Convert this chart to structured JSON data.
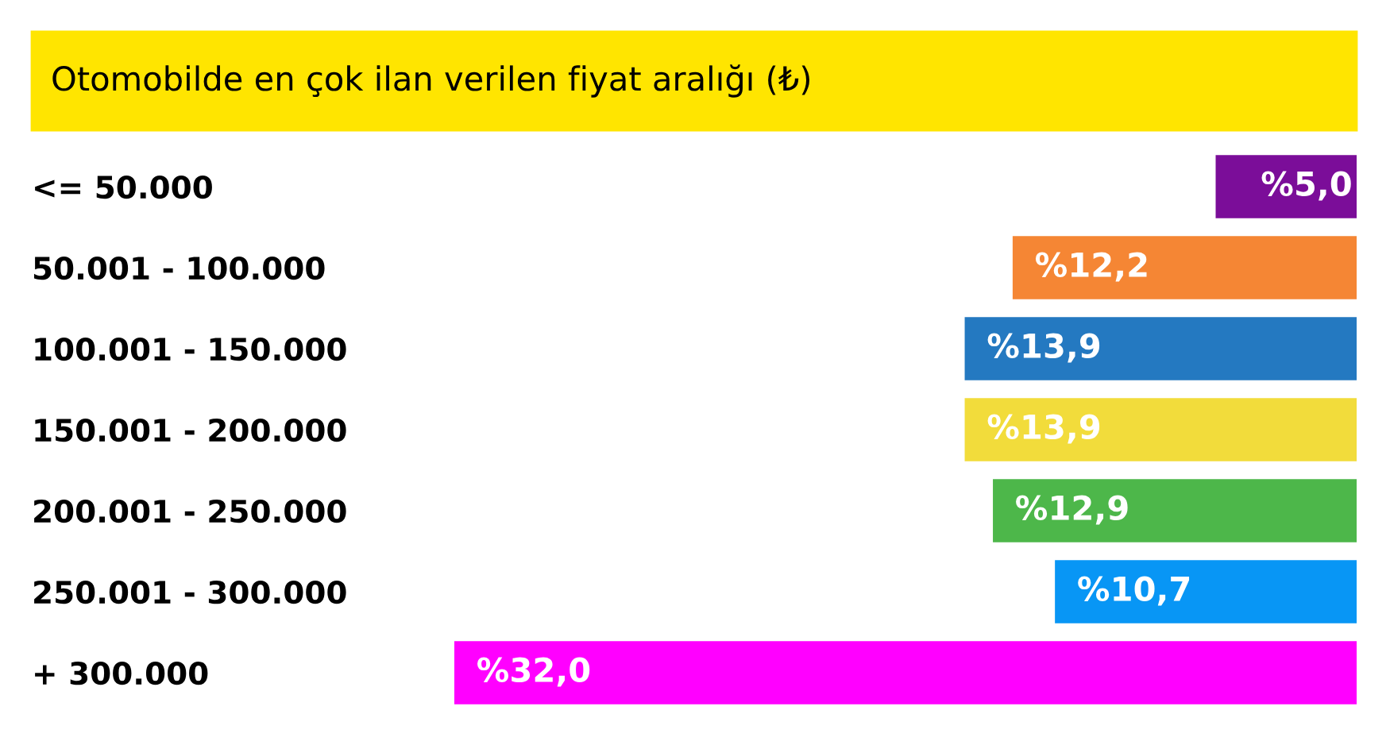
{
  "chart_data": {
    "type": "bar",
    "orientation": "horizontal",
    "title": "Otomobilde en çok ilan verilen fiyat aralığı (₺)",
    "categories": [
      "<= 50.000",
      "50.001 - 100.000",
      "100.001 - 150.000",
      "150.001 - 200.000",
      "200.001 - 250.000",
      "250.001 - 300.000",
      "+ 300.000"
    ],
    "values": [
      5.0,
      12.2,
      13.9,
      13.9,
      12.9,
      10.7,
      32.0
    ],
    "value_labels": [
      "%5,0",
      "%12,2",
      "%13,9",
      "%13,9",
      "%12,9",
      "%10,7",
      "%32,0"
    ],
    "colors": [
      "#7b0d99",
      "#f58634",
      "#2479c1",
      "#f2dc3b",
      "#4db74a",
      "#0896f5",
      "#ff00ff"
    ],
    "xlim": [
      32,
      0
    ],
    "tick_labels": "y",
    "grid": false,
    "legend": false
  }
}
